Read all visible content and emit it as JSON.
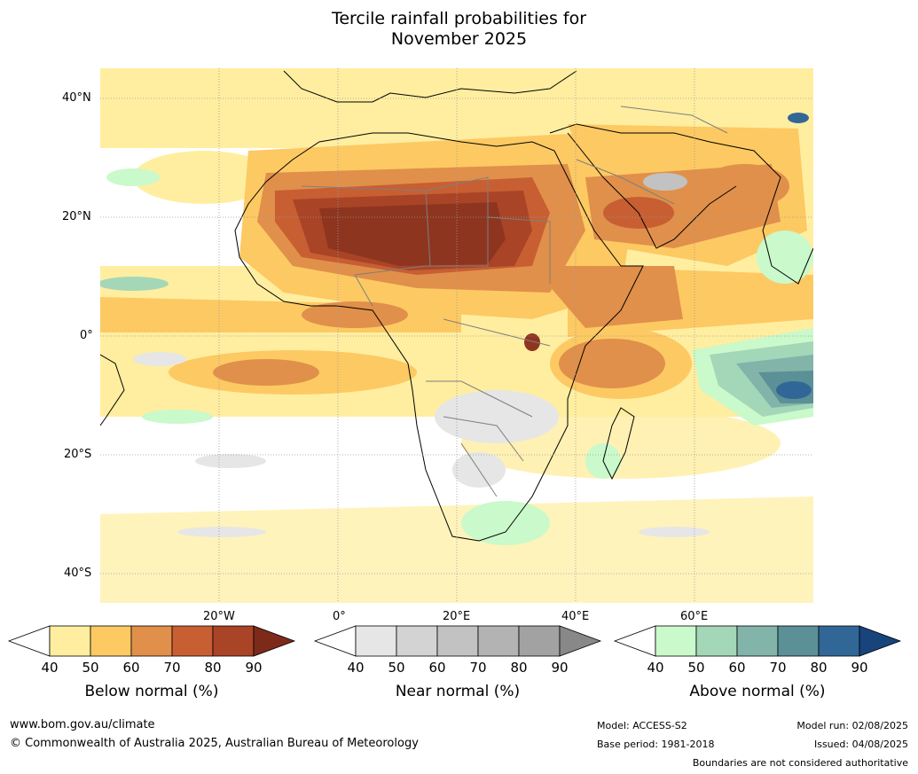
{
  "title": {
    "line1": "Tercile rainfall probabilities for",
    "line2": "November 2025"
  },
  "map": {
    "lat_labels": [
      "40°N",
      "20°N",
      "0°",
      "20°S",
      "40°S"
    ],
    "lon_labels": [
      "20°W",
      "0°",
      "20°E",
      "40°E",
      "60°E"
    ],
    "colors": {
      "ocean_bg": "#ffffff",
      "coast": "#000000",
      "borders": "#7f7f7f",
      "grid": "#9a9a9a"
    }
  },
  "legends": [
    {
      "title": "Below normal (%)",
      "ticks": [
        "40",
        "50",
        "60",
        "70",
        "80",
        "90"
      ],
      "colors": [
        "#ffeea0",
        "#fdc963",
        "#e0904a",
        "#c75f33",
        "#a94427",
        "#7d2a1a"
      ]
    },
    {
      "title": "Near normal (%)",
      "ticks": [
        "40",
        "50",
        "60",
        "70",
        "80",
        "90"
      ],
      "colors": [
        "#e6e6e6",
        "#d3d3d3",
        "#c2c2c2",
        "#b3b3b3",
        "#a2a2a2",
        "#888888"
      ]
    },
    {
      "title": "Above normal (%)",
      "ticks": [
        "40",
        "50",
        "60",
        "70",
        "80",
        "90"
      ],
      "colors": [
        "#caf9cb",
        "#a4d7b8",
        "#82b4aa",
        "#5b9097",
        "#316796",
        "#17447a"
      ]
    }
  ],
  "footer": {
    "website": "www.bom.gov.au/climate",
    "copyright": "© Commonwealth of Australia 2025, Australian Bureau of Meteorology",
    "model": "Model: ACCESS-S2",
    "base_period": "Base period: 1981-2018",
    "model_run": "Model run: 02/08/2025",
    "issued": "Issued: 04/08/2025",
    "disclaimer": "Boundaries are not considered authoritative"
  }
}
